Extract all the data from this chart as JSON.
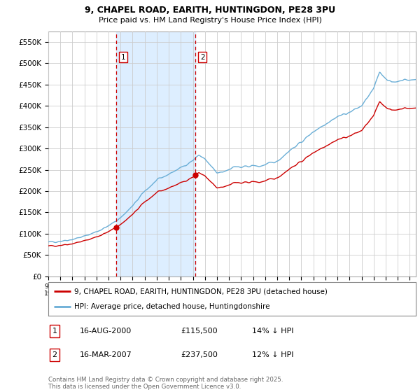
{
  "title_line1": "9, CHAPEL ROAD, EARITH, HUNTINGDON, PE28 3PU",
  "title_line2": "Price paid vs. HM Land Registry's House Price Index (HPI)",
  "ylim": [
    0,
    575000
  ],
  "yticks": [
    0,
    50000,
    100000,
    150000,
    200000,
    250000,
    300000,
    350000,
    400000,
    450000,
    500000,
    550000
  ],
  "ytick_labels": [
    "£0",
    "£50K",
    "£100K",
    "£150K",
    "£200K",
    "£250K",
    "£300K",
    "£350K",
    "£400K",
    "£450K",
    "£500K",
    "£550K"
  ],
  "hpi_color": "#6aaed6",
  "price_color": "#cc0000",
  "shade_color": "#ddeeff",
  "purchase1_date": 2000.62,
  "purchase1_price": 115500,
  "purchase1_label": "1",
  "purchase2_date": 2007.21,
  "purchase2_price": 237500,
  "purchase2_label": "2",
  "legend_line1": "9, CHAPEL ROAD, EARITH, HUNTINGDON, PE28 3PU (detached house)",
  "legend_line2": "HPI: Average price, detached house, Huntingdonshire",
  "table_row1_num": "1",
  "table_row1_date": "16-AUG-2000",
  "table_row1_price": "£115,500",
  "table_row1_hpi": "14% ↓ HPI",
  "table_row2_num": "2",
  "table_row2_date": "16-MAR-2007",
  "table_row2_price": "£237,500",
  "table_row2_hpi": "12% ↓ HPI",
  "footer": "Contains HM Land Registry data © Crown copyright and database right 2025.\nThis data is licensed under the Open Government Licence v3.0.",
  "bg_color": "#ffffff",
  "grid_color": "#cccccc",
  "xmin": 1995,
  "xmax": 2025.5
}
